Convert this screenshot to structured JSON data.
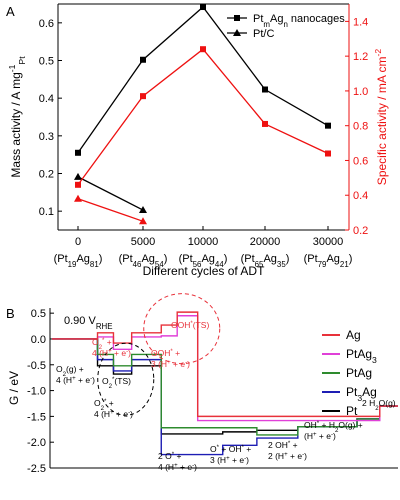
{
  "chart_data": [
    {
      "panel": "A",
      "type": "line",
      "categories": [
        "0",
        "5000",
        "10000",
        "20000",
        "30000"
      ],
      "category_sublabels": [
        {
          "base": "(Pt",
          "parts": [
            [
              "19",
              "sub"
            ],
            [
              "Ag",
              ""
            ],
            [
              "81",
              "sub"
            ]
          ],
          "end": ")"
        },
        {
          "base": "(Pt",
          "parts": [
            [
              "46",
              "sub"
            ],
            [
              "Ag",
              ""
            ],
            [
              "54",
              "sub"
            ]
          ],
          "end": ")"
        },
        {
          "base": "(Pt",
          "parts": [
            [
              "56",
              "sub"
            ],
            [
              "Ag",
              ""
            ],
            [
              "44",
              "sub"
            ]
          ],
          "end": ")"
        },
        {
          "base": "(Pt",
          "parts": [
            [
              "65",
              "sub"
            ],
            [
              "Ag",
              ""
            ],
            [
              "35",
              "sub"
            ]
          ],
          "end": ")"
        },
        {
          "base": "(Pt",
          "parts": [
            [
              "79",
              "sub"
            ],
            [
              "Ag",
              ""
            ],
            [
              "21",
              "sub"
            ]
          ],
          "end": ")"
        }
      ],
      "xlabel": "Different cycles of ADT",
      "ylabel_left": "Mass activity / A mg",
      "ylabel_left_sup": "-1",
      "ylabel_left_sub": "Pt",
      "ylabel_right": "Specific activity / mA cm",
      "ylabel_right_sup": "-2",
      "ylim_left": [
        0.05,
        0.65
      ],
      "yticks_left": [
        "0.1",
        "0.2",
        "0.3",
        "0.4",
        "0.5",
        "0.6"
      ],
      "ylim_right": [
        0.2,
        1.5
      ],
      "yticks_right": [
        "0.2",
        "0.4",
        "0.6",
        "0.8",
        "1.0",
        "1.2",
        "1.4"
      ],
      "legend_position": "top-right",
      "legend": [
        {
          "text": "Pt",
          "sub1": "m",
          "mid": "Ag",
          "sub2": "n",
          "end": " nanocages",
          "marker": "square"
        },
        {
          "text": "Pt/C",
          "marker": "triangle"
        }
      ],
      "series": [
        {
          "axis": "left",
          "color": "#000000",
          "marker": "square",
          "x": [
            0,
            1,
            2,
            3,
            4
          ],
          "values": [
            0.255,
            0.502,
            0.642,
            0.423,
            0.327
          ]
        },
        {
          "axis": "left",
          "color": "#000000",
          "marker": "triangle",
          "x": [
            0,
            1
          ],
          "values": [
            0.191,
            0.103
          ]
        },
        {
          "axis": "right",
          "color": "#ee1111",
          "marker": "square",
          "x": [
            0,
            1,
            2,
            3,
            4
          ],
          "values": [
            0.46,
            0.97,
            1.24,
            0.81,
            0.64
          ]
        },
        {
          "axis": "right",
          "color": "#ee1111",
          "marker": "triangle",
          "x": [
            0,
            1
          ],
          "values": [
            0.38,
            0.25
          ]
        }
      ],
      "colors": {
        "left_axis": "#000000",
        "right_axis": "#ee1111"
      }
    },
    {
      "panel": "B",
      "type": "line",
      "condition_label": "0.90 V",
      "condition_sub": "RHE",
      "ylabel": "G / eV",
      "ylim": [
        -2.5,
        0.6
      ],
      "yticks": [
        "0.5",
        "0.0",
        "-0.5",
        "-1.0",
        "-1.5",
        "-2.0",
        "-2.5"
      ],
      "legend_position": "right",
      "legend": [
        {
          "name": "Ag",
          "color": "#e8313a"
        },
        {
          "name": "PtAg",
          "sub": "3",
          "color": "#e040d8"
        },
        {
          "name": "PtAg",
          "color": "#2e8b2e"
        },
        {
          "name": "Pt",
          "sub": "3",
          "name2": "Ag",
          "color": "#1e1eb4"
        },
        {
          "name": "Pt",
          "color": "#000000"
        }
      ],
      "step_edges": [
        0.0,
        1.0,
        1.35,
        1.75,
        2.4,
        2.75,
        3.2,
        3.75,
        4.5,
        5.4,
        6.7,
        7.2,
        7.6
      ],
      "series": [
        {
          "name": "Ag",
          "color": "#e8313a",
          "levels": [
            0.0,
            0.12,
            -0.08,
            0.12,
            0.27,
            0.52,
            -1.5,
            -1.5,
            -1.5,
            -1.5,
            -1.5,
            -1.3
          ]
        },
        {
          "name": "PtAg3",
          "color": "#e040d8",
          "levels": [
            0.0,
            0.04,
            -0.2,
            0.04,
            0.06,
            0.45,
            -1.58,
            -1.58,
            -1.58,
            -1.58,
            -1.58,
            -1.3
          ]
        },
        {
          "name": "PtAg",
          "color": "#2e8b2e",
          "levels": [
            0.0,
            -0.3,
            -0.52,
            -0.3,
            -1.72,
            -1.72,
            -1.72,
            -1.72,
            -1.86,
            -1.7,
            -1.55,
            -1.3
          ]
        },
        {
          "name": "Pt3Ag",
          "color": "#1e1eb4",
          "levels": [
            0.0,
            -0.4,
            -0.62,
            -0.4,
            -2.24,
            -2.24,
            -2.24,
            -2.06,
            -1.92,
            -1.7,
            -1.55,
            -1.3
          ]
        },
        {
          "name": "Pt",
          "color": "#000000",
          "levels": [
            0.0,
            -0.52,
            -0.68,
            -0.52,
            -1.84,
            -1.84,
            -1.84,
            -1.8,
            -1.77,
            -1.7,
            -1.55,
            -1.3
          ]
        }
      ],
      "annotations": [
        {
          "id": "o2g",
          "lines": [
            {
              "t": "O",
              "sub": "2",
              "t2": "(g) +"
            },
            {
              "t": "4 (H",
              "sup": "+",
              "t2": " + e",
              "sup2": "-",
              "t3": ")"
            }
          ],
          "color": "#000000"
        },
        {
          "id": "o2_ts",
          "lines": [
            {
              "t": "O",
              "sub": "2",
              "sup": "*",
              "t2": "(TS)"
            }
          ],
          "color": "#000000"
        },
        {
          "id": "o2_star",
          "lines": [
            {
              "t": "O",
              "sub": "2",
              "sup": "*",
              "t2": " +"
            },
            {
              "t": "4 (H",
              "sup": "+",
              "t2": " + e",
              "sup2": "-",
              "t3": ")"
            }
          ],
          "color": "#000000"
        },
        {
          "id": "o2_star_red",
          "lines": [
            {
              "t": "O",
              "sub": "2",
              "sup": "*",
              "t2": " +"
            },
            {
              "t": "4 (H",
              "sup": "+",
              "t2": " + e",
              "sup2": "-",
              "t3": ")"
            }
          ],
          "color": "#e8313a"
        },
        {
          "id": "ooh_ts",
          "lines": [
            {
              "t": "OOH",
              "sup": "*",
              "t2": "(TS)"
            }
          ],
          "color": "#e8313a"
        },
        {
          "id": "ooh_star",
          "lines": [
            {
              "t": "OOH",
              "sup": "*",
              "t2": " +"
            },
            {
              "t": "3 (H",
              "sup": "+",
              "t2": " + e",
              "sup2": "-",
              "t3": ")"
            }
          ],
          "color": "#e8313a"
        },
        {
          "id": "two_o",
          "lines": [
            {
              "t": "2 O",
              "sup": "*",
              "t2": " +"
            },
            {
              "t": "4 (H",
              "sup": "+",
              "t2": " + e",
              "sup2": "-",
              "t3": ")"
            }
          ],
          "color": "#000000"
        },
        {
          "id": "o_oh",
          "lines": [
            {
              "t": "O",
              "sup": "*",
              "t2": " + OH",
              "sup2": "*",
              "t3": " +"
            },
            {
              "t": "3 (H",
              "sup": "+",
              "t2": " + e",
              "sup2": "-",
              "t3": ")"
            }
          ],
          "color": "#000000"
        },
        {
          "id": "two_oh",
          "lines": [
            {
              "t": "2 OH",
              "sup": "*",
              "t2": " +"
            },
            {
              "t": "2 (H",
              "sup": "+",
              "t2": " + e",
              "sup2": "-",
              "t3": ")"
            }
          ],
          "color": "#000000"
        },
        {
          "id": "oh_h2o",
          "lines": [
            {
              "t": "OH",
              "sup": "*",
              "t2": " + H",
              "sub2": "2",
              "t3": "O(g) +"
            },
            {
              "t": "(H",
              "sup": "+",
              "t2": " + e",
              "sup2": "-",
              "t3": ")"
            }
          ],
          "color": "#000000"
        },
        {
          "id": "two_h2o",
          "lines": [
            {
              "t": "2 H",
              "sub": "2",
              "t2": "O(g)"
            }
          ],
          "color": "#000000"
        }
      ]
    }
  ]
}
